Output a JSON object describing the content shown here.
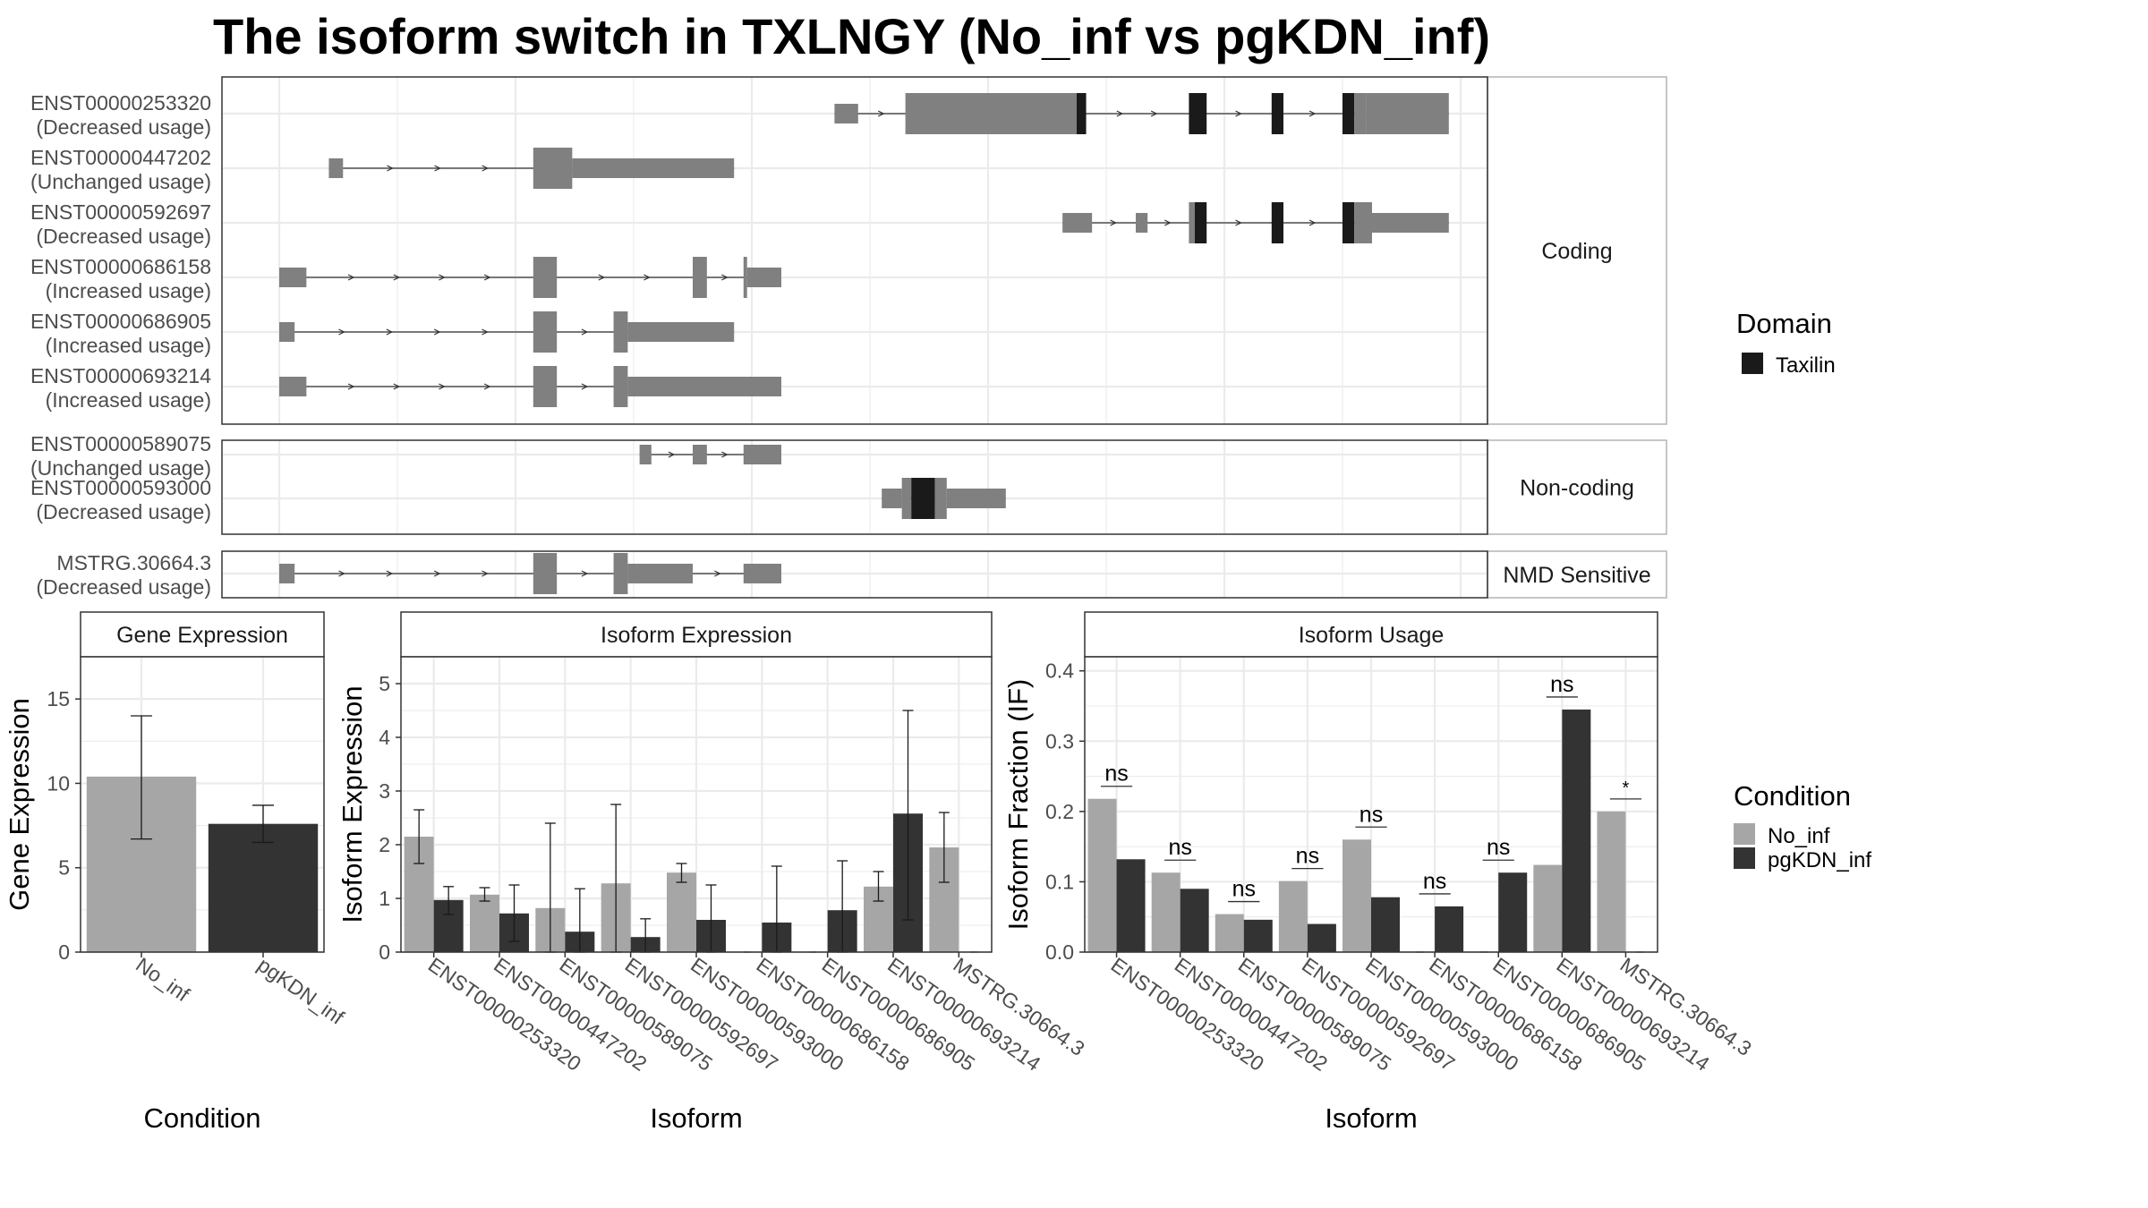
{
  "title": "The isoform switch in TXLNGY (No_inf vs pgKDN_inf)",
  "colors": {
    "exon": "#808080",
    "domain": "#1a1a1a",
    "no_inf": "#a6a6a6",
    "pgkdn_inf": "#333333",
    "grid": "#ebebeb",
    "border": "#333333",
    "strip": "#ffffff"
  },
  "structure": {
    "x_range": [
      0,
      100
    ],
    "panels": [
      {
        "label": "Coding",
        "isoforms": [
          {
            "id": "ENST00000253320",
            "usage": "(Decreased usage)",
            "exons": [
              [
                47,
                49,
                "s"
              ],
              [
                53,
                67.5,
                "l"
              ],
              [
                67.5,
                68.3,
                "d"
              ],
              [
                77,
                78.5,
                "d"
              ],
              [
                84,
                85,
                "d"
              ],
              [
                90,
                91,
                "d"
              ],
              [
                91,
                92,
                "l"
              ],
              [
                92,
                99,
                "l"
              ]
            ]
          },
          {
            "id": "ENST00000447202",
            "usage": "(Unchanged usage)",
            "exons": [
              [
                4.2,
                5.4,
                "s"
              ],
              [
                21.5,
                24.8,
                "l"
              ],
              [
                24.8,
                38.5,
                "s"
              ]
            ]
          },
          {
            "id": "ENST00000592697",
            "usage": "(Decreased usage)",
            "exons": [
              [
                66.3,
                68.8,
                "s"
              ],
              [
                72.5,
                73.5,
                "s"
              ],
              [
                77,
                77.5,
                "l"
              ],
              [
                77.5,
                78.5,
                "d"
              ],
              [
                84,
                85,
                "d"
              ],
              [
                90,
                91,
                "d"
              ],
              [
                91,
                92.5,
                "l"
              ],
              [
                92.5,
                99,
                "s"
              ]
            ]
          },
          {
            "id": "ENST00000686158",
            "usage": "(Increased usage)",
            "exons": [
              [
                0,
                2.3,
                "s"
              ],
              [
                21.5,
                23.5,
                "l"
              ],
              [
                35,
                36.2,
                "l"
              ],
              [
                39.3,
                39.6,
                "l"
              ],
              [
                39.6,
                42.5,
                "s"
              ]
            ]
          },
          {
            "id": "ENST00000686905",
            "usage": "(Increased usage)",
            "exons": [
              [
                0,
                1.3,
                "s"
              ],
              [
                21.5,
                23.5,
                "l"
              ],
              [
                28.3,
                29.5,
                "l"
              ],
              [
                29.5,
                38.5,
                "s"
              ]
            ]
          },
          {
            "id": "ENST00000693214",
            "usage": "(Increased usage)",
            "exons": [
              [
                0,
                2.3,
                "s"
              ],
              [
                21.5,
                23.5,
                "l"
              ],
              [
                28.3,
                29.5,
                "l"
              ],
              [
                29.5,
                42.5,
                "s"
              ]
            ]
          }
        ]
      },
      {
        "label": "Non-coding",
        "isoforms": [
          {
            "id": "ENST00000589075",
            "usage": "(Unchanged usage)",
            "exons": [
              [
                30.5,
                31.5,
                "s"
              ],
              [
                35,
                36.2,
                "s"
              ],
              [
                39.3,
                42.5,
                "s"
              ]
            ]
          },
          {
            "id": "ENST00000593000",
            "usage": "(Decreased usage)",
            "exons": [
              [
                51,
                52.7,
                "s"
              ],
              [
                52.7,
                53.5,
                "l"
              ],
              [
                53.5,
                55.5,
                "d"
              ],
              [
                55.5,
                56.5,
                "l"
              ],
              [
                56.5,
                61.5,
                "s"
              ]
            ]
          }
        ]
      },
      {
        "label": "NMD Sensitive",
        "isoforms": [
          {
            "id": "MSTRG.30664.3",
            "usage": "(Decreased usage)",
            "exons": [
              [
                0,
                1.3,
                "s"
              ],
              [
                21.5,
                23.5,
                "l"
              ],
              [
                28.3,
                29.5,
                "l"
              ],
              [
                29.5,
                35,
                "s"
              ],
              [
                39.3,
                42.5,
                "s"
              ]
            ]
          }
        ]
      }
    ]
  },
  "legend_domain": {
    "title": "Domain",
    "items": [
      "Taxilin"
    ]
  },
  "legend_condition": {
    "title": "Condition",
    "items": [
      "No_inf",
      "pgKDN_inf"
    ]
  },
  "chart_data": [
    {
      "type": "bar",
      "title": "Gene Expression",
      "xlabel": "Condition",
      "ylabel": "Gene Expression",
      "ylim": [
        0,
        17.5
      ],
      "yticks": [
        0,
        5,
        10,
        15
      ],
      "categories": [
        "No_inf",
        "pgKDN_inf"
      ],
      "values": [
        10.4,
        7.6
      ],
      "errors": [
        [
          6.7,
          14.0
        ],
        [
          6.5,
          8.7
        ]
      ]
    },
    {
      "type": "bar",
      "title": "Isoform Expression",
      "xlabel": "Isoform",
      "ylabel": "Isoform Expression",
      "ylim": [
        0,
        5.5
      ],
      "yticks": [
        0,
        1,
        2,
        3,
        4,
        5
      ],
      "categories": [
        "ENST00000253320",
        "ENST00000447202",
        "ENST00000589075",
        "ENST00000592697",
        "ENST00000593000",
        "ENST00000686158",
        "ENST00000686905",
        "ENST00000693214",
        "MSTRG.30664.3"
      ],
      "series": [
        {
          "name": "No_inf",
          "values": [
            2.15,
            1.07,
            0.82,
            1.28,
            1.48,
            0.0,
            0.0,
            1.22,
            1.95
          ],
          "errors": [
            [
              1.65,
              2.65
            ],
            [
              0.95,
              1.2
            ],
            [
              0,
              2.4
            ],
            [
              0,
              2.75
            ],
            [
              1.3,
              1.65
            ],
            null,
            null,
            [
              0.95,
              1.5
            ],
            [
              1.3,
              2.6
            ]
          ]
        },
        {
          "name": "pgKDN_inf",
          "values": [
            0.97,
            0.72,
            0.38,
            0.28,
            0.6,
            0.55,
            0.78,
            2.58,
            0.0
          ],
          "errors": [
            [
              0.7,
              1.22
            ],
            [
              0.2,
              1.25
            ],
            [
              0,
              1.18
            ],
            [
              0,
              0.62
            ],
            [
              0,
              1.25
            ],
            [
              0,
              1.6
            ],
            [
              0,
              1.7
            ],
            [
              0.6,
              4.5
            ],
            null
          ]
        }
      ]
    },
    {
      "type": "bar",
      "title": "Isoform Usage",
      "xlabel": "Isoform",
      "ylabel": "Isoform Fraction (IF)",
      "ylim": [
        0,
        0.42
      ],
      "yticks": [
        0.0,
        0.1,
        0.2,
        0.3,
        0.4
      ],
      "categories": [
        "ENST00000253320",
        "ENST00000447202",
        "ENST00000589075",
        "ENST00000592697",
        "ENST00000593000",
        "ENST00000686158",
        "ENST00000686905",
        "ENST00000693214",
        "MSTRG.30664.3"
      ],
      "series": [
        {
          "name": "No_inf",
          "values": [
            0.218,
            0.113,
            0.054,
            0.101,
            0.16,
            0.0,
            0.0,
            0.124,
            0.2
          ]
        },
        {
          "name": "pgKDN_inf",
          "values": [
            0.132,
            0.09,
            0.046,
            0.04,
            0.078,
            0.065,
            0.113,
            0.345,
            0.0
          ]
        }
      ],
      "significance": [
        "ns",
        "ns",
        "ns",
        "ns",
        "ns",
        "ns",
        "ns",
        "ns",
        "*"
      ]
    }
  ]
}
